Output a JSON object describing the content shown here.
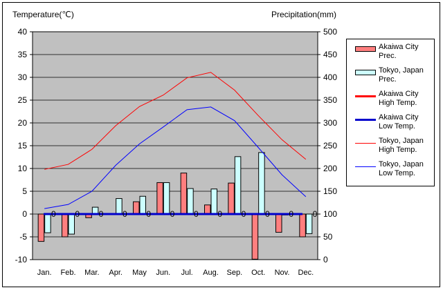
{
  "chart_data": {
    "type": "bar+line",
    "y_left_label": "Temperature(℃)",
    "y_right_label": "Precipitation(mm)",
    "y_left_range": [
      -10,
      40
    ],
    "y_right_range": [
      0,
      500
    ],
    "y_left_ticks": [
      "40",
      "35",
      "30",
      "25",
      "20",
      "15",
      "10",
      "5",
      "0",
      "-5",
      "-10"
    ],
    "y_right_ticks": [
      "500",
      "450",
      "400",
      "350",
      "300",
      "250",
      "200",
      "150",
      "100",
      "50",
      "0"
    ],
    "categories": [
      "Jan.",
      "Feb.",
      "Mar.",
      "Apr.",
      "May",
      "Jun.",
      "Jul.",
      "Aug.",
      "Sep.",
      "Oct.",
      "Nov.",
      "Dec."
    ],
    "colors": {
      "plot_bg": "#c0c0c0",
      "akaiwa_prec": "#ff7f7f",
      "tokyo_prec": "#ccffff",
      "akaiwa_high": "#ff0000",
      "akaiwa_low": "#0000cc",
      "tokyo_high": "#ff0000",
      "tokyo_low": "#0000ff"
    },
    "series": [
      {
        "name": "Akaiwa City Prec.",
        "kind": "bar",
        "axis": "right",
        "values": [
          40,
          50,
          92,
          100,
          127,
          169,
          190,
          120,
          168,
          1,
          60,
          50
        ]
      },
      {
        "name": "Tokyo, Japan Prec.",
        "kind": "bar",
        "axis": "right",
        "values": [
          59,
          56,
          115,
          134,
          139,
          169,
          156,
          155,
          226,
          235,
          98,
          57
        ]
      },
      {
        "name": "Akaiwa City High Temp.",
        "kind": "line",
        "axis": "left",
        "width": 3,
        "values": [
          0,
          0,
          0,
          0,
          0,
          0,
          0,
          0,
          0,
          0,
          0,
          0
        ]
      },
      {
        "name": "Akaiwa City Low Temp.",
        "kind": "line",
        "axis": "left",
        "width": 3,
        "values": [
          0,
          0,
          0,
          0,
          0,
          0,
          0,
          0,
          0,
          0,
          0,
          0
        ]
      },
      {
        "name": "Tokyo, Japan High Temp.",
        "kind": "line",
        "axis": "left",
        "width": 1,
        "values": [
          9.8,
          10.9,
          14.2,
          19.4,
          23.6,
          26.1,
          29.9,
          31.1,
          27.2,
          21.6,
          16.3,
          12.0
        ]
      },
      {
        "name": "Tokyo, Japan Low Temp.",
        "kind": "line",
        "axis": "left",
        "width": 1,
        "values": [
          1.2,
          2.1,
          5.0,
          10.7,
          15.4,
          19.1,
          22.9,
          23.5,
          20.5,
          14.6,
          8.6,
          3.8
        ]
      }
    ],
    "zero_labels": [
      "0",
      "0",
      "0",
      "0",
      "0",
      "0",
      "0",
      "0",
      "0",
      "0",
      "0",
      "0"
    ],
    "legend": {
      "position": "right",
      "entries": [
        {
          "label": "Akaiwa City\nPrec.",
          "kind": "bar",
          "color": "#ff7f7f"
        },
        {
          "label": "Tokyo, Japan\nPrec.",
          "kind": "bar",
          "color": "#ccffff"
        },
        {
          "label": "Akaiwa City\nHigh Temp.",
          "kind": "line",
          "color": "#ff0000",
          "width": 3
        },
        {
          "label": "Akaiwa City\nLow Temp.",
          "kind": "line",
          "color": "#0000cc",
          "width": 3
        },
        {
          "label": "Tokyo, Japan\nHigh Temp.",
          "kind": "line",
          "color": "#ff0000",
          "width": 1
        },
        {
          "label": "Tokyo, Japan\nLow Temp.",
          "kind": "line",
          "color": "#0000ff",
          "width": 1
        }
      ]
    }
  }
}
